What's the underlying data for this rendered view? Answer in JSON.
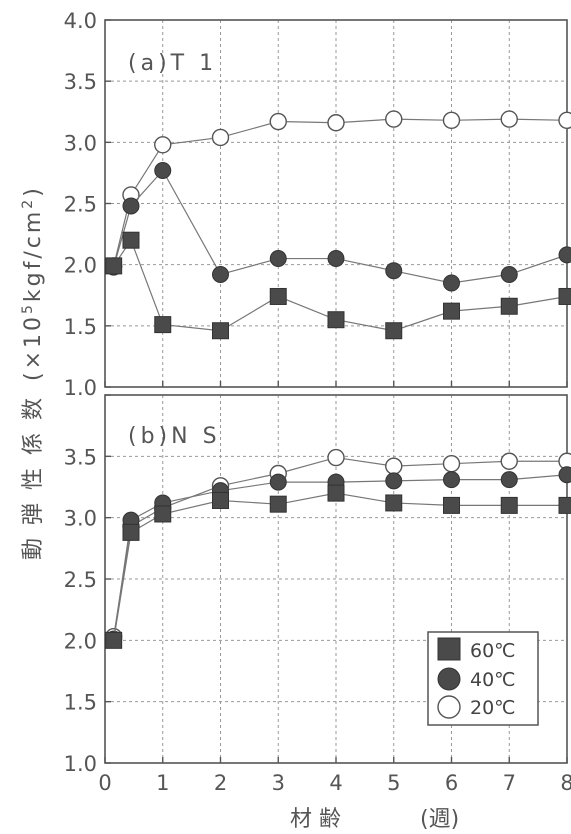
{
  "chart_data": [
    {
      "type": "line",
      "title": "(a)T 1",
      "xlabel": "材 齢 (週)",
      "ylabel": "動 弾 性 係 数 (×10⁵kgf/cm²)",
      "xlim": [
        0,
        8
      ],
      "ylim": [
        1.0,
        4.0
      ],
      "grid": true,
      "series": [
        {
          "name": "60℃",
          "marker": "filled-square",
          "color": "#555555",
          "x": [
            0.15,
            0.45,
            1,
            2,
            3,
            4,
            5,
            6,
            7,
            8
          ],
          "y": [
            1.99,
            2.2,
            1.51,
            1.46,
            1.74,
            1.55,
            1.46,
            1.62,
            1.66,
            1.74
          ]
        },
        {
          "name": "40℃",
          "marker": "filled-circle",
          "color": "#555555",
          "x": [
            0.15,
            0.45,
            1,
            2,
            3,
            4,
            5,
            6,
            7,
            8
          ],
          "y": [
            1.98,
            2.48,
            2.77,
            1.92,
            2.05,
            2.05,
            1.95,
            1.85,
            1.92,
            2.08
          ]
        },
        {
          "name": "20℃",
          "marker": "open-circle",
          "color": "#555555",
          "x": [
            0.15,
            0.45,
            1,
            2,
            3,
            4,
            5,
            6,
            7,
            8
          ],
          "y": [
            1.99,
            2.57,
            2.98,
            3.04,
            3.17,
            3.16,
            3.19,
            3.18,
            3.19,
            3.18
          ]
        }
      ]
    },
    {
      "type": "line",
      "title": "(b)N S",
      "xlabel": "材 齢 (週)",
      "ylabel": "動 弾 性 係 数 (×10⁵kgf/cm²)",
      "xlim": [
        0,
        8
      ],
      "ylim": [
        1.0,
        4.0
      ],
      "grid": true,
      "series": [
        {
          "name": "60℃",
          "marker": "filled-square",
          "color": "#555555",
          "x": [
            0.15,
            0.45,
            1,
            2,
            3,
            4,
            5,
            6,
            7,
            8
          ],
          "y": [
            2.0,
            2.88,
            3.03,
            3.14,
            3.11,
            3.2,
            3.12,
            3.1,
            3.1,
            3.1
          ]
        },
        {
          "name": "40℃",
          "marker": "filled-circle",
          "color": "#555555",
          "x": [
            0.15,
            0.45,
            1,
            2,
            3,
            4,
            5,
            6,
            7,
            8
          ],
          "y": [
            2.01,
            2.98,
            3.12,
            3.22,
            3.29,
            3.29,
            3.3,
            3.31,
            3.31,
            3.35
          ]
        },
        {
          "name": "20℃",
          "marker": "open-circle",
          "color": "#555555",
          "x": [
            0.15,
            0.45,
            1,
            2,
            3,
            4,
            5,
            6,
            7,
            8
          ],
          "y": [
            2.03,
            2.93,
            3.08,
            3.26,
            3.36,
            3.49,
            3.42,
            3.44,
            3.46,
            3.46
          ]
        }
      ]
    }
  ],
  "axes": {
    "x_ticks": [
      "0",
      "1",
      "2",
      "3",
      "4",
      "5",
      "6",
      "7",
      "8"
    ],
    "top_y_ticks": [
      "4.0",
      "3.5",
      "3.0",
      "2.5",
      "2.0",
      "1.5",
      "1.0"
    ],
    "bottom_y_ticks": [
      "3.5",
      "3.0",
      "2.5",
      "2.0",
      "1.5",
      "1.0"
    ],
    "ylabel_main": "動 弾 性 係 数",
    "ylabel_unit": "(×10",
    "ylabel_exp": "5",
    "ylabel_unit2": "kgf/cm",
    "ylabel_exp2": "2",
    "ylabel_close": ")",
    "xlabel_main": "材 齢",
    "xlabel_unit": "(週)"
  },
  "legend": {
    "placement": "bottom-right of panel (b)",
    "items": [
      "60℃",
      "40℃",
      "20℃"
    ]
  }
}
